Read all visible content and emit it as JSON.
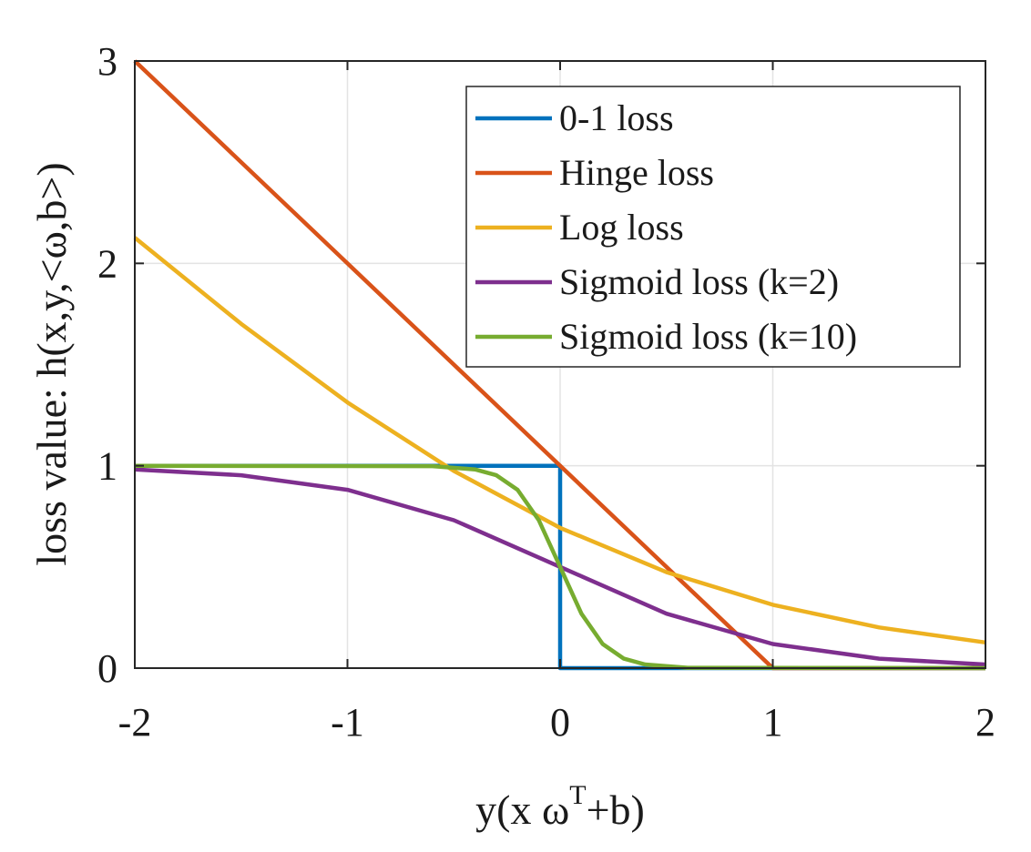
{
  "chart_data": {
    "type": "line",
    "xlabel": "y(x ω",
    "xlabel_sup": "T",
    "xlabel_tail": "+b)",
    "ylabel": "loss value: h(x,y,<ω,b>)",
    "xlim": [
      -2,
      2
    ],
    "ylim": [
      0,
      3
    ],
    "xticks": [
      -2,
      -1,
      0,
      1,
      2
    ],
    "xtick_labels": [
      "-2",
      "-1",
      "0",
      "1",
      "2"
    ],
    "yticks": [
      0,
      1,
      2,
      3
    ],
    "ytick_labels": [
      "0",
      "1",
      "2",
      "3"
    ],
    "grid": true,
    "legend_position": "top-right",
    "series": [
      {
        "name": "0-1 loss",
        "color": "#0072BD",
        "x": [
          -2,
          0,
          0,
          2
        ],
        "y": [
          1,
          1,
          0,
          0
        ]
      },
      {
        "name": "Hinge loss",
        "color": "#D95319",
        "x": [
          -2,
          1,
          2
        ],
        "y": [
          3,
          0,
          0
        ]
      },
      {
        "name": "Log loss",
        "color": "#EDB120",
        "x": [
          -2,
          -1.5,
          -1,
          -0.5,
          0,
          0.5,
          1,
          1.5,
          2
        ],
        "y": [
          2.127,
          1.701,
          1.313,
          0.974,
          0.693,
          0.474,
          0.313,
          0.201,
          0.127
        ]
      },
      {
        "name": "Sigmoid loss (k=2)",
        "color": "#7E2F8E",
        "x": [
          -2,
          -1.5,
          -1,
          -0.5,
          0,
          0.5,
          1,
          1.5,
          2
        ],
        "y": [
          0.982,
          0.953,
          0.881,
          0.731,
          0.5,
          0.269,
          0.119,
          0.047,
          0.018
        ]
      },
      {
        "name": "Sigmoid loss (k=10)",
        "color": "#77AC30",
        "x": [
          -2,
          -0.6,
          -0.4,
          -0.3,
          -0.2,
          -0.1,
          0,
          0.1,
          0.2,
          0.3,
          0.4,
          0.6,
          2
        ],
        "y": [
          1,
          0.998,
          0.982,
          0.953,
          0.881,
          0.731,
          0.5,
          0.269,
          0.119,
          0.047,
          0.018,
          0.002,
          0
        ]
      }
    ]
  }
}
